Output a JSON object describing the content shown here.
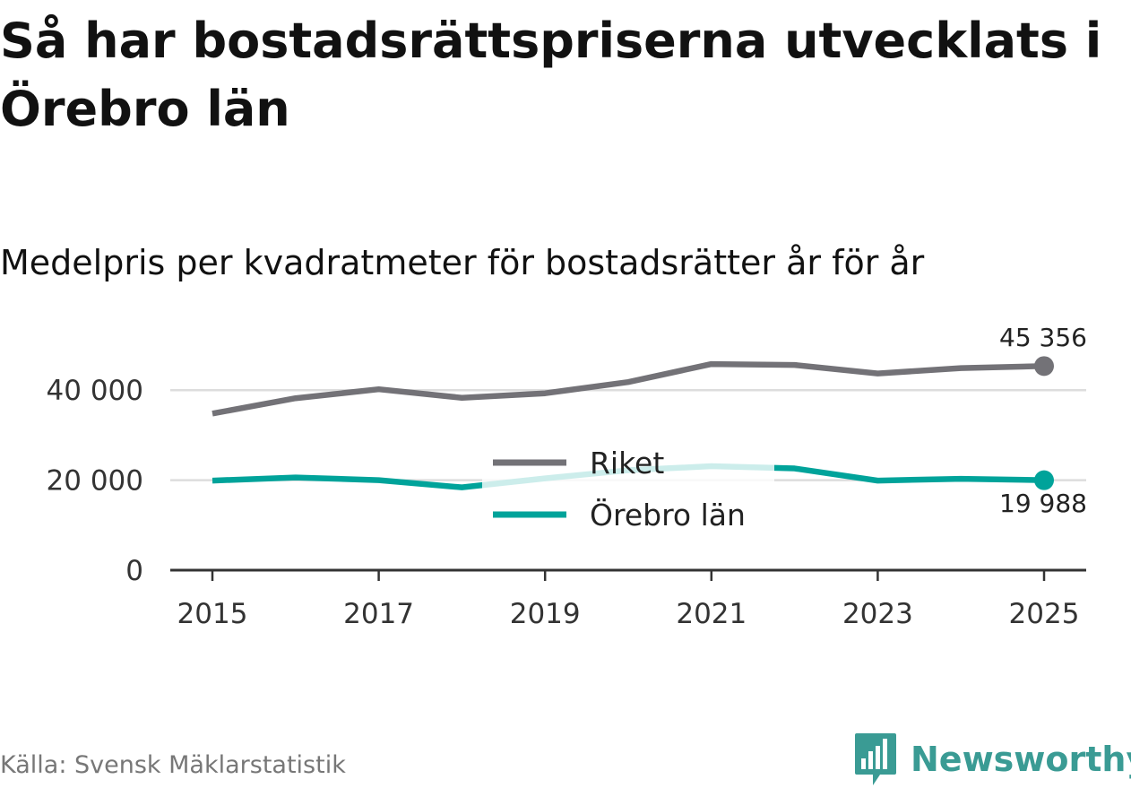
{
  "title": "Så har bostadsrättspriserna utvecklats i Örebro län",
  "subtitle": "Medelpris per kvadratmeter för bostadsrätter år för år",
  "source": "Källa: Svensk Mäklarstatistik",
  "brand": "Newsworthy",
  "colors": {
    "riket": "#737277",
    "orebro": "#00a39a",
    "grid": "#dddddd",
    "axis": "#333333",
    "brand": "#3a9b94"
  },
  "chart_data": {
    "type": "line",
    "title": "Medelpris per kvadratmeter för bostadsrätter år för år",
    "x": [
      2015,
      2016,
      2017,
      2018,
      2019,
      2020,
      2021,
      2022,
      2023,
      2024,
      2025
    ],
    "series": [
      {
        "name": "Riket",
        "color": "#737277",
        "values": [
          34800,
          38200,
          40200,
          38300,
          39300,
          41800,
          45800,
          45600,
          43700,
          44900,
          45356
        ]
      },
      {
        "name": "Örebro län",
        "color": "#00a39a",
        "values": [
          19900,
          20600,
          20000,
          18400,
          20400,
          22200,
          23100,
          22600,
          19900,
          20300,
          19988
        ]
      }
    ],
    "xticks": [
      "2015",
      "2017",
      "2019",
      "2021",
      "2023",
      "2025"
    ],
    "yticks": [
      "0",
      "20 000",
      "40 000"
    ],
    "ylim": [
      0,
      50000
    ],
    "xlim": [
      2015,
      2025
    ],
    "end_labels": {
      "Riket": "45 356",
      "Örebro län": "19 988"
    },
    "legend": [
      "Riket",
      "Örebro län"
    ],
    "legend_position": "center",
    "grid": true
  }
}
